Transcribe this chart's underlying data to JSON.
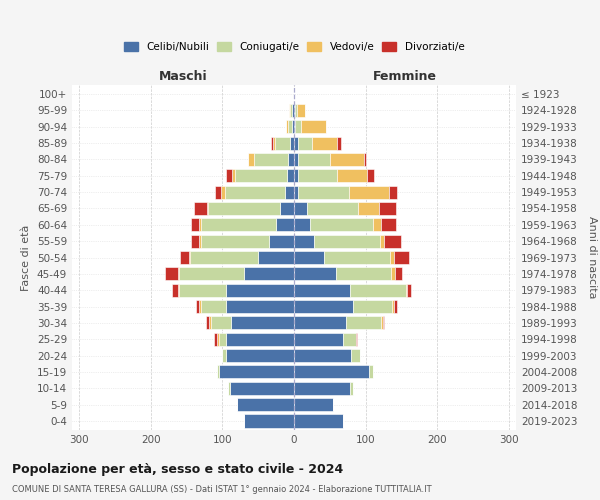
{
  "age_groups_bottom_to_top": [
    "0-4",
    "5-9",
    "10-14",
    "15-19",
    "20-24",
    "25-29",
    "30-34",
    "35-39",
    "40-44",
    "45-49",
    "50-54",
    "55-59",
    "60-64",
    "65-69",
    "70-74",
    "75-79",
    "80-84",
    "85-89",
    "90-94",
    "95-99",
    "100+"
  ],
  "birth_years_bottom_to_top": [
    "2019-2023",
    "2014-2018",
    "2009-2013",
    "2004-2008",
    "1999-2003",
    "1994-1998",
    "1989-1993",
    "1984-1988",
    "1979-1983",
    "1974-1978",
    "1969-1973",
    "1964-1968",
    "1959-1963",
    "1954-1958",
    "1949-1953",
    "1944-1948",
    "1939-1943",
    "1934-1938",
    "1929-1933",
    "1924-1928",
    "≤ 1923"
  ],
  "colors": {
    "celibi": "#4a72a8",
    "coniugati": "#c5d8a0",
    "vedove": "#f0c060",
    "divorziate": "#c8302a"
  },
  "legend_labels": [
    "Celibi/Nubili",
    "Coniugati/e",
    "Vedovi/e",
    "Divorziati/e"
  ],
  "label_maschi": "Maschi",
  "label_femmine": "Femmine",
  "ylabel_left": "Fasce di età",
  "ylabel_right": "Anni di nascita",
  "title": "Popolazione per età, sesso e stato civile - 2024",
  "subtitle": "COMUNE DI SANTA TERESA GALLURA (SS) - Dati ISTAT 1° gennaio 2024 - Elaborazione TUTTITALIA.IT",
  "bg_color": "#f5f5f5",
  "plot_bg": "#ffffff",
  "maschi": {
    "celibi": [
      70,
      80,
      90,
      105,
      95,
      95,
      88,
      95,
      95,
      70,
      50,
      35,
      25,
      20,
      12,
      10,
      8,
      5,
      3,
      3,
      0
    ],
    "coniugati": [
      0,
      0,
      2,
      2,
      5,
      10,
      28,
      35,
      65,
      90,
      95,
      95,
      105,
      100,
      85,
      72,
      48,
      22,
      5,
      2,
      0
    ],
    "vedovi": [
      0,
      0,
      0,
      0,
      0,
      2,
      2,
      2,
      2,
      2,
      2,
      2,
      2,
      2,
      5,
      5,
      8,
      3,
      3,
      2,
      0
    ],
    "divorziati": [
      0,
      0,
      0,
      0,
      0,
      5,
      5,
      5,
      8,
      18,
      12,
      12,
      12,
      18,
      8,
      8,
      0,
      2,
      0,
      0,
      0
    ]
  },
  "femmine": {
    "nubili": [
      68,
      55,
      78,
      105,
      80,
      68,
      72,
      82,
      78,
      58,
      42,
      28,
      22,
      18,
      5,
      5,
      5,
      5,
      2,
      2,
      0
    ],
    "coniugate": [
      0,
      0,
      4,
      5,
      12,
      18,
      50,
      55,
      78,
      78,
      92,
      92,
      88,
      72,
      72,
      55,
      45,
      20,
      8,
      2,
      0
    ],
    "vedove": [
      0,
      0,
      0,
      0,
      0,
      0,
      2,
      2,
      2,
      5,
      5,
      5,
      12,
      28,
      55,
      42,
      48,
      35,
      35,
      12,
      0
    ],
    "divorziate": [
      0,
      0,
      0,
      0,
      0,
      2,
      2,
      5,
      5,
      10,
      22,
      25,
      20,
      25,
      12,
      10,
      2,
      5,
      0,
      0,
      0
    ]
  }
}
